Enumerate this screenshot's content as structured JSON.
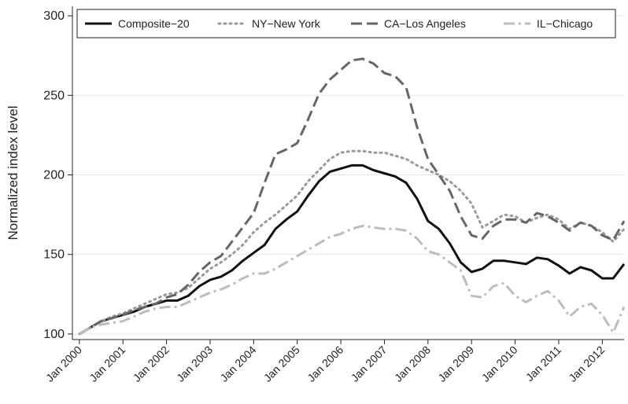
{
  "chart_data": {
    "type": "line",
    "y_label": "Normalized index level",
    "x": [
      2000,
      2000.25,
      2000.5,
      2000.75,
      2001,
      2001.25,
      2001.5,
      2001.75,
      2002,
      2002.25,
      2002.5,
      2002.75,
      2003,
      2003.25,
      2003.5,
      2003.75,
      2004,
      2004.25,
      2004.5,
      2004.75,
      2005,
      2005.25,
      2005.5,
      2005.75,
      2006,
      2006.25,
      2006.5,
      2006.75,
      2007,
      2007.25,
      2007.5,
      2007.75,
      2008,
      2008.25,
      2008.5,
      2008.75,
      2009,
      2009.25,
      2009.5,
      2009.75,
      2010,
      2010.25,
      2010.5,
      2010.75,
      2011,
      2011.25,
      2011.5,
      2011.75,
      2012,
      2012.25,
      2012.5
    ],
    "series": [
      {
        "name": "Composite−20",
        "color": "#111111",
        "dash": "solid",
        "values": [
          100,
          104,
          108,
          110,
          112,
          114,
          117,
          119,
          121,
          121,
          124,
          130,
          134,
          136,
          140,
          146,
          151,
          156,
          166,
          172,
          177,
          187,
          196,
          202,
          204,
          206,
          206,
          203,
          201,
          199,
          195,
          185,
          171,
          166,
          157,
          145,
          139,
          141,
          146,
          146,
          145,
          144,
          148,
          147,
          143,
          138,
          142,
          140,
          135,
          135,
          144
        ]
      },
      {
        "name": "NY−New York",
        "color": "#9a9a9a",
        "dash": "dot",
        "values": [
          100,
          104,
          108,
          111,
          113,
          116,
          119,
          122,
          125,
          126,
          129,
          135,
          141,
          145,
          150,
          156,
          164,
          170,
          175,
          181,
          187,
          196,
          203,
          210,
          214,
          215,
          215,
          214,
          214,
          212,
          210,
          206,
          203,
          200,
          196,
          190,
          182,
          167,
          171,
          175,
          174,
          170,
          173,
          175,
          172,
          166,
          170,
          168,
          164,
          158,
          166
        ]
      },
      {
        "name": "CA−Los Angeles",
        "color": "#666666",
        "dash": "dash",
        "values": [
          100,
          104,
          108,
          110,
          112,
          115,
          117,
          119,
          123,
          125,
          131,
          139,
          145,
          149,
          158,
          167,
          176,
          195,
          213,
          216,
          220,
          235,
          251,
          260,
          266,
          272,
          273,
          270,
          264,
          262,
          255,
          230,
          210,
          200,
          190,
          174,
          162,
          160,
          168,
          172,
          172,
          170,
          176,
          174,
          170,
          165,
          170,
          168,
          162,
          159,
          171
        ]
      },
      {
        "name": "IL−Chicago",
        "color": "#bdbdbd",
        "dash": "dashdot",
        "values": [
          100,
          104,
          106,
          107,
          108,
          111,
          114,
          116,
          117,
          117,
          120,
          123,
          126,
          128,
          131,
          135,
          138,
          138,
          141,
          145,
          149,
          153,
          157,
          161,
          163,
          166,
          168,
          167,
          166,
          166,
          165,
          160,
          152,
          150,
          145,
          140,
          124,
          123,
          130,
          132,
          124,
          120,
          124,
          127,
          121,
          111,
          117,
          119,
          112,
          101,
          117
        ]
      }
    ],
    "xlim": [
      1999.84,
      2012.5
    ],
    "xticks": [
      {
        "value": 2000,
        "label": "Jan 2000"
      },
      {
        "value": 2001,
        "label": "Jan 2001"
      },
      {
        "value": 2002,
        "label": "Jan 2002"
      },
      {
        "value": 2003,
        "label": "Jan 2003"
      },
      {
        "value": 2004,
        "label": "Jan 2004"
      },
      {
        "value": 2005,
        "label": "Jan 2005"
      },
      {
        "value": 2006,
        "label": "Jan 2006"
      },
      {
        "value": 2007,
        "label": "Jan 2007"
      },
      {
        "value": 2008,
        "label": "Jan 2008"
      },
      {
        "value": 2009,
        "label": "Jan 2009"
      },
      {
        "value": 2010,
        "label": "Jan 2010"
      },
      {
        "value": 2011,
        "label": "Jan 2011"
      },
      {
        "value": 2012,
        "label": "Jan 2012"
      }
    ],
    "ylim": [
      96.5,
      306
    ],
    "yticks": [
      100,
      150,
      200,
      250,
      300
    ],
    "grid": true,
    "legend": "top"
  }
}
